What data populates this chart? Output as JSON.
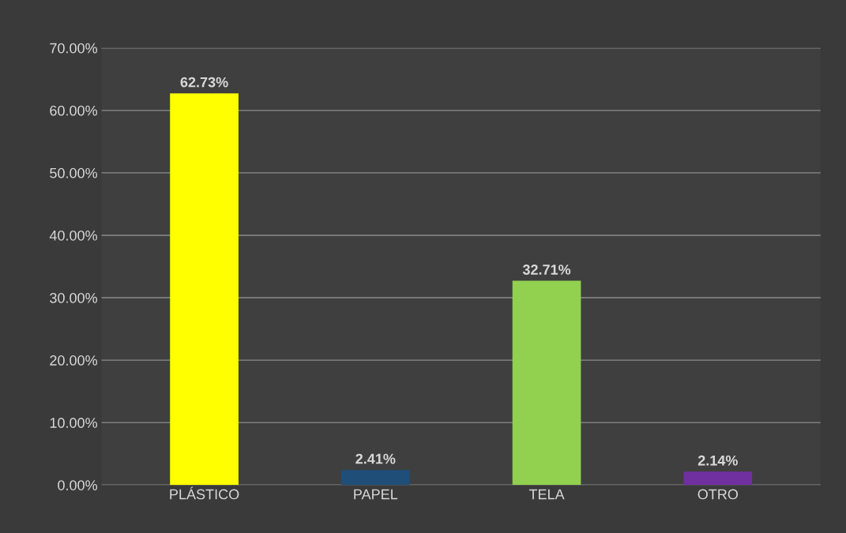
{
  "chart_data": {
    "type": "bar",
    "categories": [
      "PLÁSTICO",
      "PAPEL",
      "TELA",
      "OTRO"
    ],
    "values": [
      62.73,
      2.41,
      32.71,
      2.14
    ],
    "colors": [
      "#ffff00",
      "#1f4e79",
      "#92d050",
      "#7030a0"
    ],
    "value_labels": [
      "62.73%",
      "2.41%",
      "32.71%",
      "2.14%"
    ],
    "ylim": [
      0,
      70
    ],
    "yticks": [
      {
        "value": 0,
        "label": "0.00%"
      },
      {
        "value": 10,
        "label": "10.00%"
      },
      {
        "value": 20,
        "label": "20.00%"
      },
      {
        "value": 30,
        "label": "30.00%"
      },
      {
        "value": 40,
        "label": "40.00%"
      },
      {
        "value": 50,
        "label": "50.00%"
      },
      {
        "value": 60,
        "label": "60.00%"
      },
      {
        "value": 70,
        "label": "70.00%"
      }
    ],
    "grid": "y",
    "legend": false
  }
}
